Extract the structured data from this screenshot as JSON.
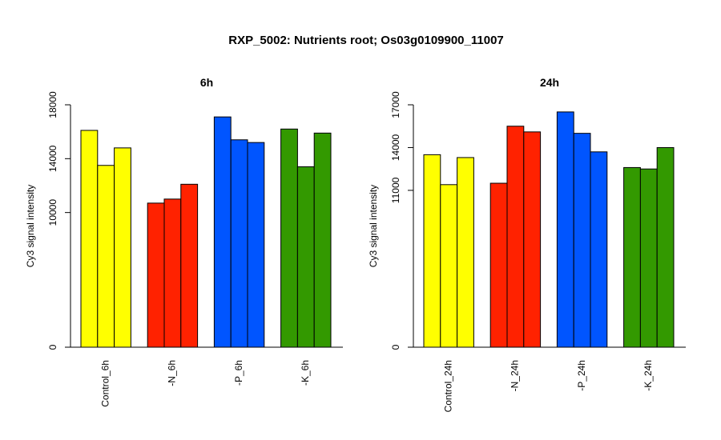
{
  "title": "RXP_5002: Nutrients root; Os03g0109900_11007",
  "chart_data": [
    {
      "type": "bar",
      "title": "6h",
      "ylabel": "Cy3 signal intensity",
      "xlabel": "",
      "ylim": [
        0,
        18000
      ],
      "yticks": [
        0,
        10000,
        14000,
        18000
      ],
      "categories": [
        "Control_6h",
        "-N_6h",
        "-P_6h",
        "-K_6h"
      ],
      "colors": [
        "#ffff00",
        "#ff2200",
        "#0055ff",
        "#339900"
      ],
      "groups": [
        {
          "name": "Control_6h",
          "values": [
            16100,
            13500,
            14800
          ]
        },
        {
          "name": "-N_6h",
          "values": [
            10700,
            11000,
            12100
          ]
        },
        {
          "name": "-P_6h",
          "values": [
            17100,
            15400,
            15200
          ]
        },
        {
          "name": "-K_6h",
          "values": [
            16200,
            13400,
            15900
          ]
        }
      ]
    },
    {
      "type": "bar",
      "title": "24h",
      "ylabel": "Cy3 signal intensity",
      "xlabel": "",
      "ylim": [
        0,
        17000
      ],
      "yticks": [
        0,
        11000,
        14000,
        17000
      ],
      "categories": [
        "Control_24h",
        "-N_24h",
        "-P_24h",
        "-K_24h"
      ],
      "colors": [
        "#ffff00",
        "#ff2200",
        "#0055ff",
        "#339900"
      ],
      "groups": [
        {
          "name": "Control_24h",
          "values": [
            13500,
            11400,
            13300
          ]
        },
        {
          "name": "-N_24h",
          "values": [
            11500,
            15500,
            15100
          ]
        },
        {
          "name": "-P_24h",
          "values": [
            16500,
            15000,
            13700
          ]
        },
        {
          "name": "-K_24h",
          "values": [
            12600,
            12500,
            14000
          ]
        }
      ]
    }
  ]
}
